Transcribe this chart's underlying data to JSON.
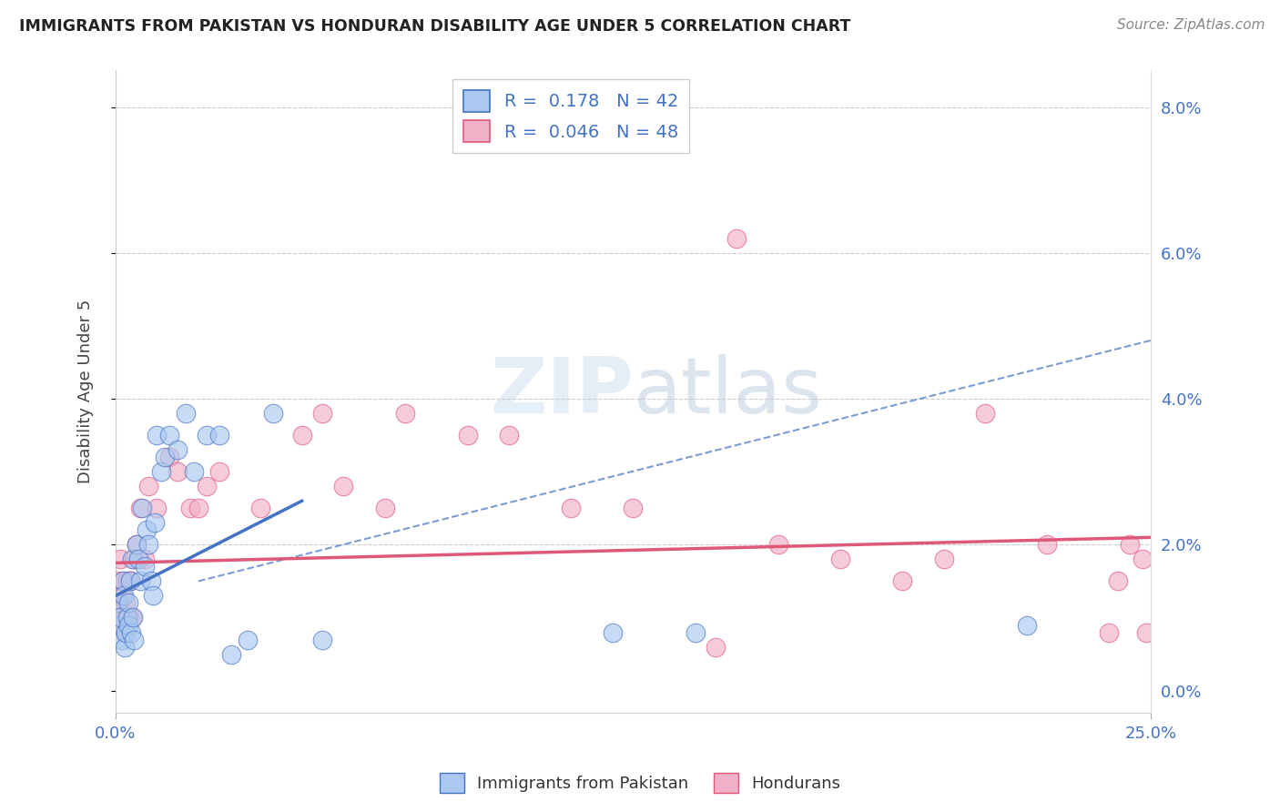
{
  "title": "IMMIGRANTS FROM PAKISTAN VS HONDURAN DISABILITY AGE UNDER 5 CORRELATION CHART",
  "source": "Source: ZipAtlas.com",
  "ylabel": "Disability Age Under 5",
  "legend_1_label": "Immigrants from Pakistan",
  "legend_2_label": "Hondurans",
  "R1": "0.178",
  "N1": "42",
  "R2": "0.046",
  "N2": "48",
  "xlim": [
    0.0,
    25.0
  ],
  "ylim": [
    -0.3,
    8.5
  ],
  "yticks": [
    0.0,
    2.0,
    4.0,
    6.0,
    8.0
  ],
  "color_blue": "#aac8f0",
  "color_pink": "#f0b0c8",
  "line_blue": "#4472c4",
  "line_pink": "#e05878",
  "background": "#ffffff",
  "pakistan_x": [
    0.05,
    0.1,
    0.12,
    0.15,
    0.18,
    0.2,
    0.22,
    0.25,
    0.28,
    0.3,
    0.32,
    0.35,
    0.38,
    0.4,
    0.42,
    0.45,
    0.5,
    0.55,
    0.6,
    0.65,
    0.7,
    0.75,
    0.8,
    0.85,
    0.9,
    0.95,
    1.0,
    1.1,
    1.2,
    1.3,
    1.5,
    1.7,
    1.9,
    2.2,
    2.5,
    2.8,
    3.2,
    3.8,
    5.0,
    12.0,
    14.0,
    22.0
  ],
  "pakistan_y": [
    1.2,
    0.9,
    1.0,
    0.7,
    1.5,
    1.3,
    0.6,
    0.8,
    1.0,
    1.2,
    0.9,
    1.5,
    0.8,
    1.8,
    1.0,
    0.7,
    2.0,
    1.8,
    1.5,
    2.5,
    1.7,
    2.2,
    2.0,
    1.5,
    1.3,
    2.3,
    3.5,
    3.0,
    3.2,
    3.5,
    3.3,
    3.8,
    3.0,
    3.5,
    3.5,
    0.5,
    0.7,
    3.8,
    0.7,
    0.8,
    0.8,
    0.9
  ],
  "honduran_x": [
    0.05,
    0.08,
    0.1,
    0.12,
    0.15,
    0.18,
    0.2,
    0.22,
    0.25,
    0.28,
    0.3,
    0.35,
    0.4,
    0.45,
    0.5,
    0.6,
    0.7,
    0.8,
    1.0,
    1.3,
    1.5,
    1.8,
    2.0,
    2.2,
    2.5,
    3.5,
    4.5,
    5.0,
    5.5,
    6.5,
    7.0,
    8.5,
    9.5,
    11.0,
    12.5,
    14.5,
    15.0,
    16.0,
    17.5,
    19.0,
    20.0,
    21.0,
    22.5,
    24.0,
    24.2,
    24.5,
    24.8,
    24.9
  ],
  "honduran_y": [
    1.5,
    1.2,
    1.0,
    1.8,
    1.3,
    1.5,
    1.0,
    0.8,
    1.2,
    1.5,
    1.0,
    1.5,
    1.0,
    1.8,
    2.0,
    2.5,
    1.8,
    2.8,
    2.5,
    3.2,
    3.0,
    2.5,
    2.5,
    2.8,
    3.0,
    2.5,
    3.5,
    3.8,
    2.8,
    2.5,
    3.8,
    3.5,
    3.5,
    2.5,
    2.5,
    0.6,
    6.2,
    2.0,
    1.8,
    1.5,
    1.8,
    3.8,
    2.0,
    0.8,
    1.5,
    2.0,
    1.8,
    0.8
  ],
  "blue_line_x": [
    0.0,
    4.5
  ],
  "blue_line_y": [
    1.3,
    2.6
  ],
  "pink_line_x": [
    0.0,
    25.0
  ],
  "pink_line_y": [
    1.75,
    2.1
  ],
  "dash_line_x": [
    2.0,
    25.0
  ],
  "dash_line_y": [
    1.5,
    4.8
  ]
}
